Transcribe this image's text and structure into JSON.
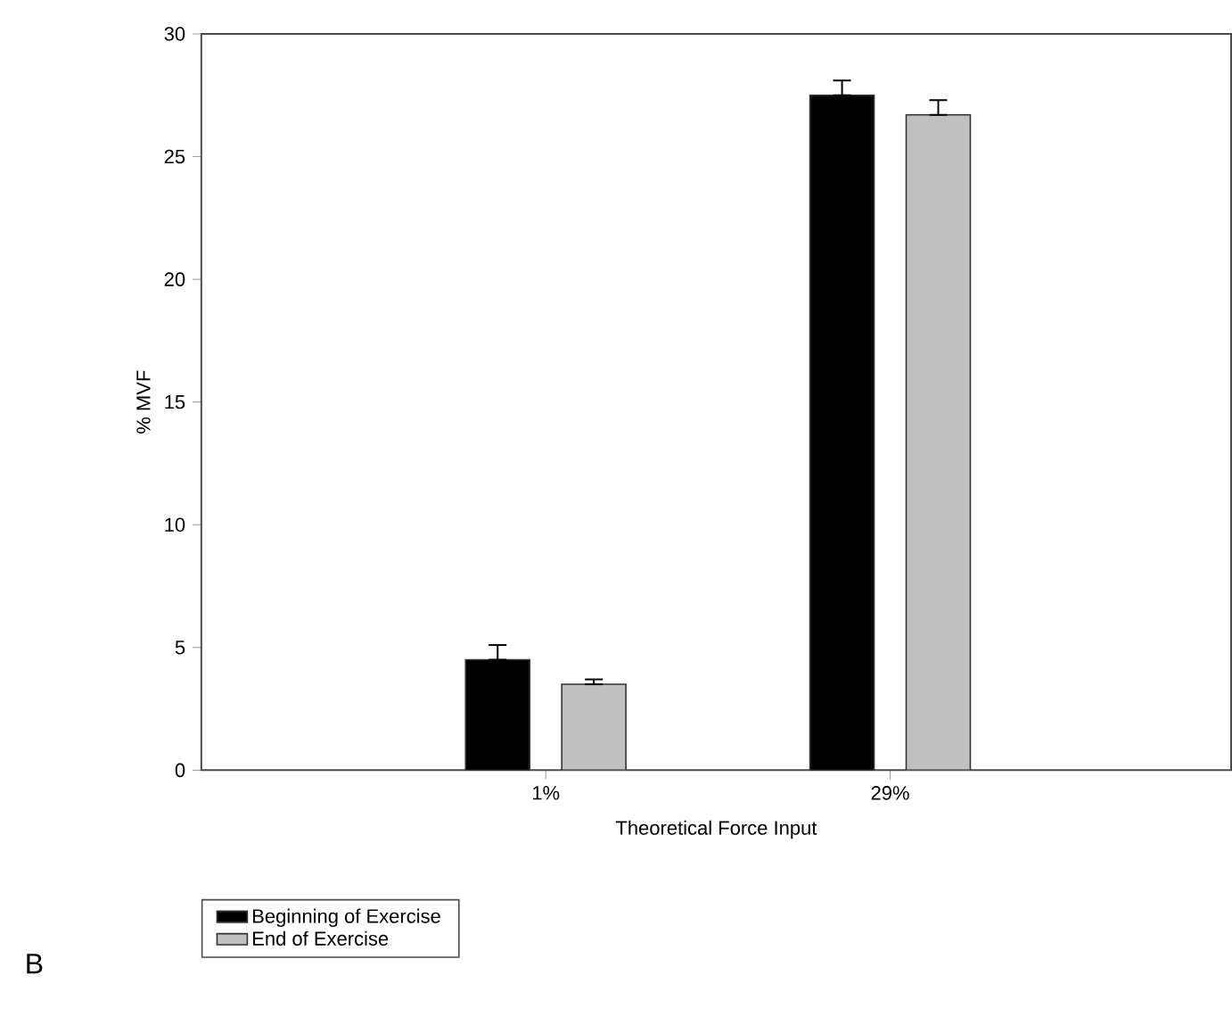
{
  "chart_data": {
    "type": "bar",
    "xlabel": "Theoretical Force Input",
    "ylabel": "% MVF",
    "categories": [
      "1%",
      "29%"
    ],
    "series": [
      {
        "name": "Beginning of Exercise",
        "color": "#000000",
        "values": [
          4.5,
          27.5
        ],
        "errors": [
          [
            4.5,
            5.1
          ],
          [
            27.5,
            28.1
          ]
        ]
      },
      {
        "name": "End of Exercise",
        "color": "#c0c0c0",
        "values": [
          3.5,
          26.7
        ],
        "errors": [
          [
            3.5,
            3.7
          ],
          [
            26.7,
            27.3
          ]
        ]
      }
    ],
    "ylim": [
      0,
      30
    ],
    "yticks": [
      0,
      5,
      10,
      15,
      20,
      25,
      30
    ],
    "legend": "bottom left",
    "grid": false,
    "annotations": [
      "B"
    ]
  }
}
